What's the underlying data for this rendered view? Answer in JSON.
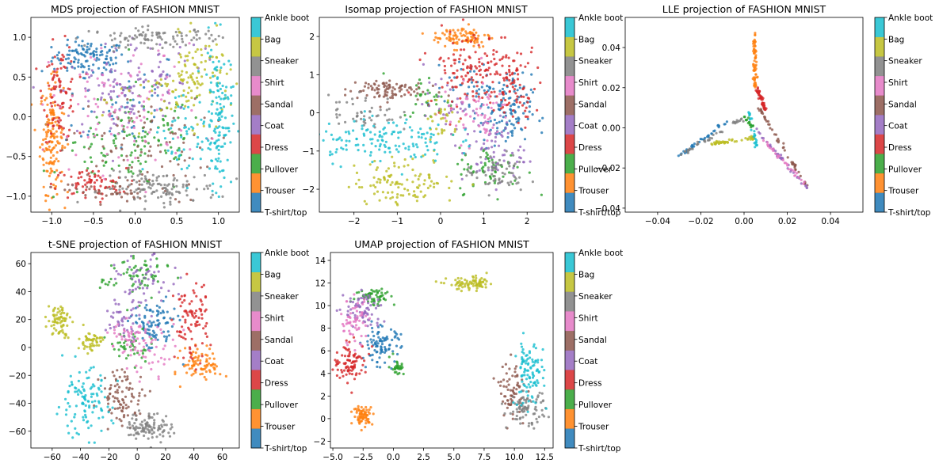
{
  "classes": [
    "T-shirt/top",
    "Trouser",
    "Pullover",
    "Dress",
    "Coat",
    "Sandal",
    "Shirt",
    "Sneaker",
    "Bag",
    "Ankle boot"
  ],
  "colors": [
    "#1f77b4",
    "#ff7f0e",
    "#2ca02c",
    "#d62728",
    "#9467bd",
    "#8c564b",
    "#e377c2",
    "#7f7f7f",
    "#bcbd22",
    "#17becf"
  ],
  "chart_data": [
    {
      "type": "scatter",
      "title": "MDS projection of FASHION MNIST",
      "xlim": [
        -1.25,
        1.25
      ],
      "ylim": [
        -1.2,
        1.25
      ],
      "xticks": [
        -1.0,
        -0.5,
        0.0,
        0.5,
        1.0
      ],
      "xtick_labels": [
        "−1.0",
        "−0.5",
        "0.0",
        "0.5",
        "1.0"
      ],
      "yticks": [
        -1.0,
        -0.5,
        0.0,
        0.5,
        1.0
      ],
      "ytick_labels": [
        "−1.0",
        "−0.5",
        "0.0",
        "0.5",
        "1.0"
      ],
      "legend": "colorbar",
      "series": [
        {
          "class": "T-shirt/top",
          "clusters": [
            [
              -0.55,
              0.75,
              0.22,
              0.1,
              110
            ],
            [
              -0.2,
              0.2,
              0.4,
              0.35,
              60
            ]
          ]
        },
        {
          "class": "Trouser",
          "clusters": [
            [
              -1.0,
              -0.25,
              0.07,
              0.35,
              150
            ]
          ]
        },
        {
          "class": "Pullover",
          "clusters": [
            [
              0.1,
              -0.3,
              0.4,
              0.35,
              90
            ],
            [
              -0.3,
              -0.5,
              0.3,
              0.2,
              40
            ]
          ]
        },
        {
          "class": "Dress",
          "clusters": [
            [
              -0.9,
              0.3,
              0.1,
              0.3,
              90
            ],
            [
              -0.55,
              -0.85,
              0.22,
              0.1,
              70
            ]
          ]
        },
        {
          "class": "Coat",
          "clusters": [
            [
              -0.2,
              0.3,
              0.35,
              0.3,
              80
            ],
            [
              0.3,
              0.7,
              0.25,
              0.2,
              40
            ]
          ]
        },
        {
          "class": "Sandal",
          "clusters": [
            [
              0.0,
              -0.4,
              0.45,
              0.35,
              90
            ],
            [
              -0.3,
              -0.95,
              0.25,
              0.07,
              40
            ]
          ]
        },
        {
          "class": "Shirt",
          "clusters": [
            [
              -0.1,
              0.1,
              0.45,
              0.4,
              100
            ]
          ]
        },
        {
          "class": "Sneaker",
          "clusters": [
            [
              0.3,
              -0.9,
              0.35,
              0.1,
              120
            ],
            [
              0.25,
              1.0,
              0.4,
              0.06,
              100
            ]
          ]
        },
        {
          "class": "Bag",
          "clusters": [
            [
              0.75,
              0.5,
              0.2,
              0.25,
              90
            ],
            [
              0.4,
              0.2,
              0.3,
              0.3,
              40
            ]
          ]
        },
        {
          "class": "Ankle boot",
          "clusters": [
            [
              1.0,
              0.0,
              0.08,
              0.45,
              130
            ],
            [
              0.6,
              -0.2,
              0.2,
              0.3,
              50
            ]
          ]
        }
      ]
    },
    {
      "type": "scatter",
      "title": "Isomap projection of FASHION MNIST",
      "xlim": [
        -2.8,
        2.6
      ],
      "ylim": [
        -2.6,
        2.5
      ],
      "xticks": [
        -2,
        -1,
        0,
        1,
        2
      ],
      "xtick_labels": [
        "−2",
        "−1",
        "0",
        "1",
        "2"
      ],
      "yticks": [
        -2,
        -1,
        0,
        1,
        2
      ],
      "ytick_labels": [
        "−2",
        "−1",
        "0",
        "1",
        "2"
      ],
      "legend": "colorbar",
      "series": [
        {
          "class": "T-shirt/top",
          "clusters": [
            [
              1.5,
              0.0,
              0.3,
              0.5,
              120
            ],
            [
              0.7,
              0.7,
              0.3,
              0.3,
              40
            ]
          ]
        },
        {
          "class": "Trouser",
          "clusters": [
            [
              0.5,
              2.0,
              0.35,
              0.15,
              90
            ]
          ]
        },
        {
          "class": "Pullover",
          "clusters": [
            [
              1.2,
              -1.5,
              0.4,
              0.3,
              60
            ],
            [
              -0.3,
              0.4,
              0.3,
              0.3,
              30
            ]
          ]
        },
        {
          "class": "Dress",
          "clusters": [
            [
              0.8,
              1.2,
              0.55,
              0.5,
              150
            ],
            [
              1.7,
              0.5,
              0.25,
              0.4,
              60
            ]
          ]
        },
        {
          "class": "Coat",
          "clusters": [
            [
              1.2,
              -1.0,
              0.35,
              0.45,
              70
            ],
            [
              0.2,
              0.2,
              0.3,
              0.3,
              30
            ]
          ]
        },
        {
          "class": "Sandal",
          "clusters": [
            [
              -1.3,
              0.6,
              0.45,
              0.15,
              90
            ]
          ]
        },
        {
          "class": "Shirt",
          "clusters": [
            [
              0.8,
              0.0,
              0.4,
              0.4,
              60
            ]
          ]
        },
        {
          "class": "Sneaker",
          "clusters": [
            [
              1.3,
              -1.6,
              0.35,
              0.25,
              60
            ],
            [
              -1.8,
              0.0,
              0.4,
              0.25,
              50
            ]
          ]
        },
        {
          "class": "Bag",
          "clusters": [
            [
              -0.8,
              -1.8,
              0.6,
              0.3,
              110
            ],
            [
              0.0,
              -0.2,
              0.2,
              0.4,
              30
            ]
          ]
        },
        {
          "class": "Ankle boot",
          "clusters": [
            [
              -1.4,
              -0.7,
              0.8,
              0.3,
              140
            ]
          ]
        }
      ]
    },
    {
      "type": "scatter",
      "title": "LLE projection of FASHION MNIST",
      "xlim": [
        -0.055,
        0.055
      ],
      "ylim": [
        -0.042,
        0.055
      ],
      "xticks": [
        -0.04,
        -0.02,
        0.0,
        0.02,
        0.04
      ],
      "xtick_labels": [
        "−0.04",
        "−0.02",
        "0.00",
        "0.02",
        "0.04"
      ],
      "yticks": [
        -0.04,
        -0.02,
        0.0,
        0.02,
        0.04
      ],
      "ytick_labels": [
        "−0.04",
        "−0.02",
        "0.00",
        "0.02",
        "0.04"
      ],
      "legend": "colorbar",
      "segments": [
        {
          "class": "T-shirt/top",
          "from": [
            -0.03,
            -0.014
          ],
          "to": [
            -0.008,
            0.003
          ],
          "n": 40
        },
        {
          "class": "Trouser",
          "from": [
            0.005,
            0.048
          ],
          "to": [
            0.005,
            0.02
          ],
          "n": 60
        },
        {
          "class": "Dress",
          "from": [
            0.006,
            0.02
          ],
          "to": [
            0.01,
            0.008
          ],
          "n": 50
        },
        {
          "class": "Sandal",
          "from": [
            0.007,
            0.01
          ],
          "to": [
            0.03,
            -0.031
          ],
          "n": 50
        },
        {
          "class": "Coat",
          "from": [
            0.005,
            0.0
          ],
          "to": [
            0.03,
            -0.031
          ],
          "n": 40
        },
        {
          "class": "Sneaker",
          "from": [
            -0.03,
            -0.014
          ],
          "to": [
            0.0,
            0.005
          ],
          "n": 40
        },
        {
          "class": "Bag",
          "from": [
            -0.015,
            -0.008
          ],
          "to": [
            0.005,
            -0.005
          ],
          "n": 50
        },
        {
          "class": "Shirt",
          "from": [
            0.008,
            -0.005
          ],
          "to": [
            0.028,
            -0.028
          ],
          "n": 30
        },
        {
          "class": "Ankle boot",
          "from": [
            0.002,
            0.008
          ],
          "to": [
            0.006,
            -0.01
          ],
          "n": 25
        },
        {
          "class": "Pullover",
          "from": [
            0.0,
            0.006
          ],
          "to": [
            0.004,
            0.0
          ],
          "n": 15
        }
      ]
    },
    {
      "type": "scatter",
      "title": "t-SNE projection of FASHION MNIST",
      "xlim": [
        -75,
        72
      ],
      "ylim": [
        -72,
        68
      ],
      "xticks": [
        -60,
        -40,
        -20,
        0,
        20,
        40,
        60
      ],
      "xtick_labels": [
        "−60",
        "−40",
        "−20",
        "0",
        "20",
        "40",
        "60"
      ],
      "yticks": [
        -60,
        -40,
        -20,
        0,
        20,
        40,
        60
      ],
      "ytick_labels": [
        "−60",
        "−40",
        "−20",
        "0",
        "20",
        "40",
        "60"
      ],
      "legend": "colorbar",
      "series": [
        {
          "class": "T-shirt/top",
          "clusters": [
            [
              12,
              15,
              8,
              9,
              90
            ]
          ]
        },
        {
          "class": "Trouser",
          "clusters": [
            [
              46,
              -12,
              7,
              6,
              80
            ]
          ]
        },
        {
          "class": "Pullover",
          "clusters": [
            [
              -2,
              52,
              12,
              9,
              70
            ],
            [
              -5,
              0,
              8,
              6,
              40
            ]
          ]
        },
        {
          "class": "Dress",
          "clusters": [
            [
              38,
              18,
              6,
              14,
              90
            ]
          ]
        },
        {
          "class": "Coat",
          "clusters": [
            [
              5,
              45,
              10,
              10,
              60
            ],
            [
              -10,
              20,
              7,
              7,
              40
            ]
          ]
        },
        {
          "class": "Sandal",
          "clusters": [
            [
              -10,
              -35,
              8,
              10,
              90
            ]
          ]
        },
        {
          "class": "Shirt",
          "clusters": [
            [
              8,
              0,
              10,
              9,
              60
            ],
            [
              -8,
              10,
              6,
              6,
              30
            ]
          ]
        },
        {
          "class": "Sneaker",
          "clusters": [
            [
              8,
              -57,
              8,
              5,
              100
            ]
          ]
        },
        {
          "class": "Bag",
          "clusters": [
            [
              -55,
              20,
              4,
              6,
              70
            ],
            [
              -33,
              4,
              4,
              4,
              50
            ]
          ]
        },
        {
          "class": "Ankle boot",
          "clusters": [
            [
              -38,
              -40,
              10,
              12,
              110
            ]
          ]
        }
      ]
    },
    {
      "type": "scatter",
      "title": "UMAP projection of FASHION MNIST",
      "xlim": [
        -5.2,
        13.2
      ],
      "ylim": [
        -2.6,
        14.7
      ],
      "xticks": [
        -5.0,
        -2.5,
        0.0,
        2.5,
        5.0,
        7.5,
        10.0,
        12.5
      ],
      "xtick_labels": [
        "−5.0",
        "−2.5",
        "0.0",
        "2.5",
        "5.0",
        "7.5",
        "10.0",
        "12.5"
      ],
      "yticks": [
        -2,
        0,
        2,
        4,
        6,
        8,
        10,
        12,
        14
      ],
      "ytick_labels": [
        "−2",
        "0",
        "2",
        "4",
        "6",
        "8",
        "10",
        "12",
        "14"
      ],
      "legend": "colorbar",
      "series": [
        {
          "class": "T-shirt/top",
          "clusters": [
            [
              -1.0,
              6.5,
              0.8,
              0.8,
              90
            ]
          ]
        },
        {
          "class": "Trouser",
          "clusters": [
            [
              -2.5,
              0.3,
              0.4,
              0.4,
              70
            ]
          ]
        },
        {
          "class": "Pullover",
          "clusters": [
            [
              -1.5,
              10.8,
              0.8,
              0.4,
              60
            ],
            [
              0.3,
              4.6,
              0.3,
              0.4,
              30
            ]
          ]
        },
        {
          "class": "Dress",
          "clusters": [
            [
              -3.5,
              5.0,
              0.7,
              0.8,
              90
            ]
          ]
        },
        {
          "class": "Coat",
          "clusters": [
            [
              -2.5,
              9.5,
              0.8,
              0.9,
              70
            ]
          ]
        },
        {
          "class": "Sandal",
          "clusters": [
            [
              9.8,
              2.5,
              0.5,
              1.2,
              70
            ]
          ]
        },
        {
          "class": "Shirt",
          "clusters": [
            [
              -3.2,
              8.5,
              0.6,
              1.0,
              60
            ]
          ]
        },
        {
          "class": "Sneaker",
          "clusters": [
            [
              11.0,
              0.8,
              0.8,
              0.8,
              80
            ]
          ]
        },
        {
          "class": "Bag",
          "clusters": [
            [
              6.5,
              11.9,
              1.0,
              0.3,
              80
            ]
          ]
        },
        {
          "class": "Ankle boot",
          "clusters": [
            [
              11.2,
              4.0,
              0.6,
              1.5,
              100
            ]
          ]
        }
      ]
    }
  ]
}
